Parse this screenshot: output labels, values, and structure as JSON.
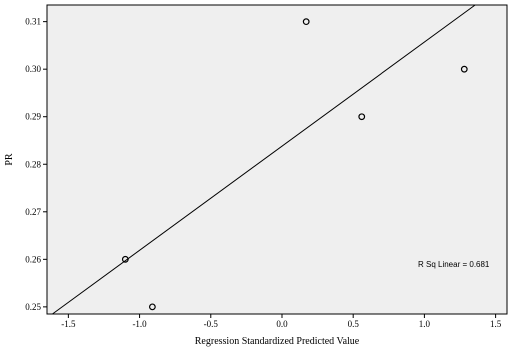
{
  "chart_data": {
    "type": "scatter",
    "xlabel": "Regression Standardized Predicted Value",
    "ylabel": "PR",
    "xlim": [
      -1.65,
      1.58
    ],
    "ylim": [
      0.2485,
      0.3135
    ],
    "xticks": [
      -1.5,
      -1.0,
      -0.5,
      0.0,
      0.5,
      1.0,
      1.5
    ],
    "xtick_labels": [
      "-1.5",
      "-1.0",
      "-0.5",
      "0.0",
      "0.5",
      "1.0",
      "1.5"
    ],
    "yticks": [
      0.25,
      0.26,
      0.27,
      0.28,
      0.29,
      0.3,
      0.31
    ],
    "ytick_labels": [
      "0.25",
      "0.26",
      "0.27",
      "0.28",
      "0.29",
      "0.30",
      "0.31"
    ],
    "points": [
      {
        "x": -1.1,
        "y": 0.26
      },
      {
        "x": -0.91,
        "y": 0.25
      },
      {
        "x": 0.17,
        "y": 0.31
      },
      {
        "x": 0.56,
        "y": 0.29
      },
      {
        "x": 1.28,
        "y": 0.3
      }
    ],
    "fit_line": {
      "slope": 0.0219,
      "intercept": 0.2838
    },
    "annotation": "R Sq Linear = 0.681",
    "grid": false,
    "plot_background": "#efefef",
    "marker_color": "#000000",
    "line_color": "#000000"
  }
}
